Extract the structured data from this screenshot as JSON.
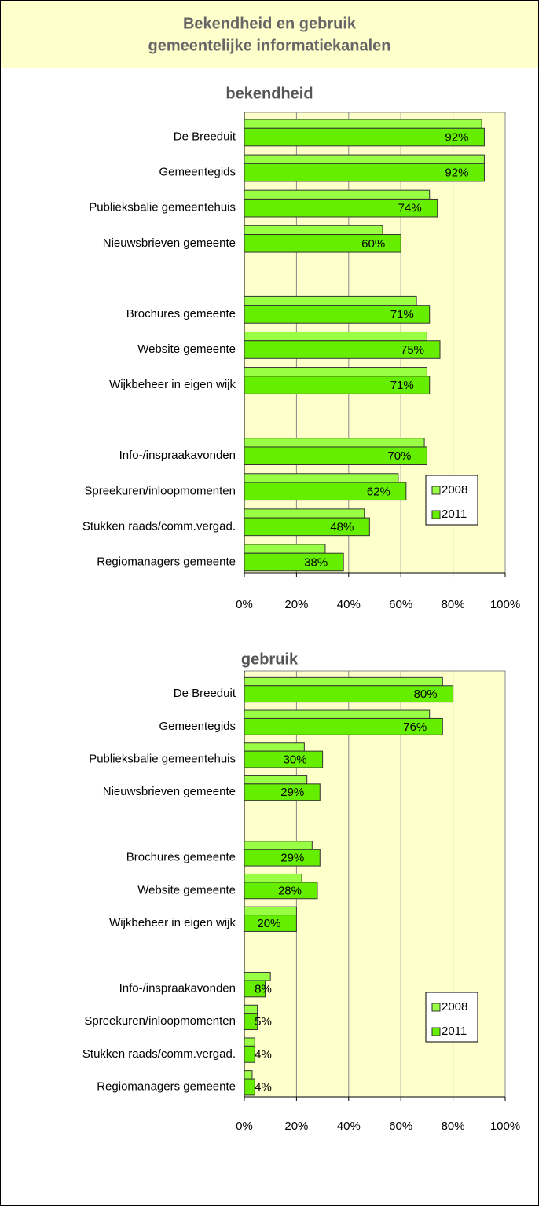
{
  "title": [
    "Bekendheid en gebruik",
    "gemeentelijke informatiekanalen"
  ],
  "chart_data": [
    {
      "type": "barh",
      "title": "bekendheid",
      "categories": [
        "De Breeduit",
        "Gemeentegids",
        "Publieksbalie gemeentehuis",
        "Nieuwsbrieven gemeente",
        null,
        "Brochures gemeente",
        "Website gemeente",
        "Wijkbeheer in eigen wijk",
        null,
        "Info-/inspraakavonden",
        "Spreekuren/inloopmomenten",
        "Stukken raads/comm.vergad.",
        "Regiomanagers gemeente"
      ],
      "series": [
        {
          "name": "2008",
          "color": "#99ff44",
          "values": [
            91,
            92,
            71,
            53,
            null,
            66,
            70,
            70,
            null,
            69,
            59,
            46,
            31
          ]
        },
        {
          "name": "2011",
          "color": "#66ee00",
          "values": [
            92,
            92,
            74,
            60,
            null,
            71,
            75,
            71,
            null,
            70,
            62,
            48,
            38
          ],
          "value_labels": [
            "92%",
            "92%",
            "74%",
            "60%",
            null,
            "71%",
            "75%",
            "71%",
            null,
            "70%",
            "62%",
            "48%",
            "38%"
          ]
        }
      ],
      "xlim": [
        0,
        100
      ],
      "xticks": [
        {
          "value": 0,
          "label": "0%"
        },
        {
          "value": 20,
          "label": "20%"
        },
        {
          "value": 40,
          "label": "40%"
        },
        {
          "value": 60,
          "label": "60%"
        },
        {
          "value": 80,
          "label": "80%"
        },
        {
          "value": 100,
          "label": "100%"
        }
      ],
      "grid": true,
      "legend": "right"
    },
    {
      "type": "barh",
      "title": "gebruik",
      "categories": [
        "De Breeduit",
        "Gemeentegids",
        "Publieksbalie gemeentehuis",
        "Nieuwsbrieven gemeente",
        null,
        "Brochures gemeente",
        "Website gemeente",
        "Wijkbeheer in eigen wijk",
        null,
        "Info-/inspraakavonden",
        "Spreekuren/inloopmomenten",
        "Stukken raads/comm.vergad.",
        "Regiomanagers gemeente"
      ],
      "series": [
        {
          "name": "2008",
          "color": "#99ff44",
          "values": [
            76,
            71,
            23,
            24,
            null,
            26,
            22,
            20,
            null,
            10,
            5,
            4,
            3
          ]
        },
        {
          "name": "2011",
          "color": "#66ee00",
          "values": [
            80,
            76,
            30,
            29,
            null,
            29,
            28,
            20,
            null,
            8,
            5,
            4,
            4
          ],
          "value_labels": [
            "80%",
            "76%",
            "30%",
            "29%",
            null,
            "29%",
            "28%",
            "20%",
            null,
            "8%",
            "5%",
            "4%",
            "4%"
          ]
        }
      ],
      "xlim": [
        0,
        100
      ],
      "xticks": [
        {
          "value": 0,
          "label": "0%"
        },
        {
          "value": 20,
          "label": "20%"
        },
        {
          "value": 40,
          "label": "40%"
        },
        {
          "value": 60,
          "label": "60%"
        },
        {
          "value": 80,
          "label": "80%"
        },
        {
          "value": 100,
          "label": "100%"
        }
      ],
      "grid": true,
      "legend": "right"
    }
  ]
}
